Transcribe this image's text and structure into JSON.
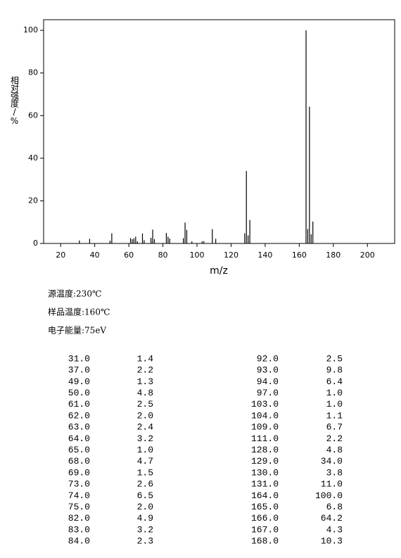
{
  "chart_data": {
    "type": "stem",
    "xlabel": "m/z",
    "ylabel": "相对强度/%",
    "x": [
      31,
      37,
      49,
      50,
      61,
      62,
      63,
      64,
      65,
      68,
      69,
      73,
      74,
      75,
      82,
      83,
      84,
      92,
      93,
      94,
      97,
      103,
      104,
      109,
      111,
      128,
      129,
      130,
      131,
      164,
      165,
      166,
      167,
      168
    ],
    "values": [
      1.4,
      2.2,
      1.3,
      4.8,
      2.5,
      2.0,
      2.4,
      3.2,
      1.0,
      4.7,
      1.5,
      2.6,
      6.5,
      2.0,
      4.9,
      3.2,
      2.3,
      2.5,
      9.8,
      6.4,
      1.0,
      1.0,
      1.1,
      6.7,
      2.2,
      4.8,
      34.0,
      3.8,
      11.0,
      100.0,
      6.8,
      64.2,
      4.3,
      10.3
    ],
    "color": "#000000",
    "xlim": [
      10,
      216
    ],
    "ylim": [
      0,
      105
    ],
    "xticks": [
      20,
      40,
      60,
      80,
      100,
      120,
      140,
      160,
      180,
      200
    ],
    "yticks": [
      0,
      20,
      40,
      60,
      80,
      100
    ]
  },
  "conditions": [
    "源温度:230℃",
    "样品温度:160℃",
    "电子能量:75eV"
  ],
  "peak_table": {
    "rows": [
      [
        "31.0",
        "1.4",
        "92.0",
        "2.5"
      ],
      [
        "37.0",
        "2.2",
        "93.0",
        "9.8"
      ],
      [
        "49.0",
        "1.3",
        "94.0",
        "6.4"
      ],
      [
        "50.0",
        "4.8",
        "97.0",
        "1.0"
      ],
      [
        "61.0",
        "2.5",
        "103.0",
        "1.0"
      ],
      [
        "62.0",
        "2.0",
        "104.0",
        "1.1"
      ],
      [
        "63.0",
        "2.4",
        "109.0",
        "6.7"
      ],
      [
        "64.0",
        "3.2",
        "111.0",
        "2.2"
      ],
      [
        "65.0",
        "1.0",
        "128.0",
        "4.8"
      ],
      [
        "68.0",
        "4.7",
        "129.0",
        "34.0"
      ],
      [
        "69.0",
        "1.5",
        "130.0",
        "3.8"
      ],
      [
        "73.0",
        "2.6",
        "131.0",
        "11.0"
      ],
      [
        "74.0",
        "6.5",
        "164.0",
        "100.0"
      ],
      [
        "75.0",
        "2.0",
        "165.0",
        "6.8"
      ],
      [
        "82.0",
        "4.9",
        "166.0",
        "64.2"
      ],
      [
        "83.0",
        "3.2",
        "167.0",
        "4.3"
      ],
      [
        "84.0",
        "2.3",
        "168.0",
        "10.3"
      ]
    ]
  }
}
